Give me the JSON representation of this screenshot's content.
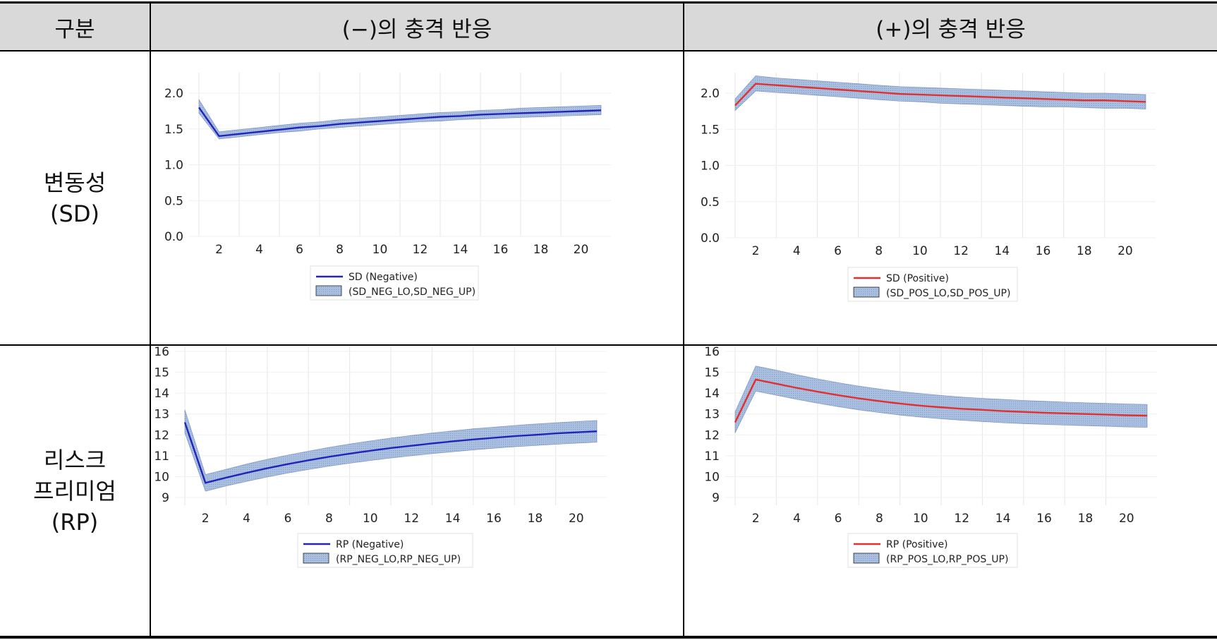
{
  "table": {
    "header": {
      "col0": "구분",
      "col1": "(−)의 충격 반응",
      "col2": "(+)의 충격 반응"
    },
    "rows": [
      {
        "label_line1": "변동성",
        "label_line2": "(SD)",
        "label_line3": ""
      },
      {
        "label_line1": "리스크",
        "label_line2": "프리미엄",
        "label_line3": "(RP)"
      }
    ]
  },
  "colors": {
    "negative_line": "#2323b8",
    "positive_line": "#e03030",
    "band_fill": "#a8bfe0",
    "band_stroke": "#5a6fa8",
    "header_bg": "#d9d9d9"
  },
  "chart_data": [
    {
      "type": "line",
      "id": "sd-neg",
      "x": [
        1,
        2,
        3,
        4,
        5,
        6,
        7,
        8,
        9,
        10,
        11,
        12,
        13,
        14,
        15,
        16,
        17,
        18,
        19,
        20,
        21
      ],
      "ylim": [
        0,
        2.4
      ],
      "yticks": [
        "0.0",
        "0.5",
        "1.0",
        "1.5",
        "2.0"
      ],
      "xticks": [
        "2",
        "4",
        "6",
        "8",
        "10",
        "12",
        "14",
        "16",
        "18",
        "20"
      ],
      "series": [
        {
          "name": "SD (Negative)",
          "values": [
            1.8,
            1.4,
            1.43,
            1.46,
            1.49,
            1.52,
            1.54,
            1.57,
            1.59,
            1.61,
            1.63,
            1.65,
            1.67,
            1.68,
            1.7,
            1.71,
            1.72,
            1.73,
            1.74,
            1.75,
            1.76
          ]
        }
      ],
      "band": {
        "name": "(SD_NEG_LO,SD_NEG_UP)",
        "lower": [
          1.72,
          1.36,
          1.39,
          1.42,
          1.45,
          1.47,
          1.5,
          1.52,
          1.54,
          1.56,
          1.58,
          1.6,
          1.61,
          1.63,
          1.64,
          1.65,
          1.66,
          1.67,
          1.68,
          1.69,
          1.7
        ],
        "upper": [
          1.91,
          1.46,
          1.49,
          1.52,
          1.55,
          1.58,
          1.6,
          1.63,
          1.65,
          1.67,
          1.69,
          1.71,
          1.73,
          1.74,
          1.76,
          1.77,
          1.79,
          1.8,
          1.81,
          1.82,
          1.83
        ]
      }
    },
    {
      "type": "line",
      "id": "sd-pos",
      "x": [
        1,
        2,
        3,
        4,
        5,
        6,
        7,
        8,
        9,
        10,
        11,
        12,
        13,
        14,
        15,
        16,
        17,
        18,
        19,
        20,
        21
      ],
      "ylim": [
        0,
        2.4
      ],
      "yticks": [
        "0.0",
        "0.5",
        "1.0",
        "1.5",
        "2.0"
      ],
      "xticks": [
        "2",
        "4",
        "6",
        "8",
        "10",
        "12",
        "14",
        "16",
        "18",
        "20"
      ],
      "series": [
        {
          "name": "SD (Positive)",
          "values": [
            1.83,
            2.13,
            2.11,
            2.09,
            2.07,
            2.05,
            2.03,
            2.01,
            1.99,
            1.98,
            1.97,
            1.96,
            1.95,
            1.94,
            1.93,
            1.92,
            1.91,
            1.9,
            1.9,
            1.89,
            1.88
          ]
        }
      ],
      "band": {
        "name": "(SD_POS_LO,SD_POS_UP)",
        "lower": [
          1.76,
          2.03,
          2.01,
          1.99,
          1.97,
          1.95,
          1.93,
          1.91,
          1.89,
          1.88,
          1.86,
          1.85,
          1.84,
          1.83,
          1.82,
          1.81,
          1.81,
          1.8,
          1.79,
          1.79,
          1.78
        ],
        "upper": [
          1.92,
          2.24,
          2.21,
          2.19,
          2.17,
          2.15,
          2.13,
          2.11,
          2.09,
          2.08,
          2.07,
          2.06,
          2.05,
          2.04,
          2.03,
          2.02,
          2.01,
          2.0,
          2.0,
          1.99,
          1.98
        ]
      }
    },
    {
      "type": "line",
      "id": "rp-neg",
      "x": [
        1,
        2,
        3,
        4,
        5,
        6,
        7,
        8,
        9,
        10,
        11,
        12,
        13,
        14,
        15,
        16,
        17,
        18,
        19,
        20,
        21
      ],
      "ylim": [
        8.4,
        16.6
      ],
      "yticks": [
        "9",
        "10",
        "11",
        "12",
        "13",
        "14",
        "15",
        "16"
      ],
      "xticks": [
        "2",
        "4",
        "6",
        "8",
        "10",
        "12",
        "14",
        "16",
        "18",
        "20"
      ],
      "series": [
        {
          "name": "RP (Negative)",
          "values": [
            12.6,
            9.7,
            9.95,
            10.18,
            10.4,
            10.6,
            10.78,
            10.95,
            11.1,
            11.24,
            11.37,
            11.48,
            11.59,
            11.69,
            11.78,
            11.86,
            11.94,
            12.0,
            12.07,
            12.12,
            12.17
          ]
        }
      ],
      "band": {
        "name": "(RP_NEG_LO,RP_NEG_UP)",
        "lower": [
          12.1,
          9.3,
          9.55,
          9.77,
          9.98,
          10.17,
          10.34,
          10.5,
          10.64,
          10.77,
          10.89,
          11.0,
          11.1,
          11.19,
          11.28,
          11.36,
          11.43,
          11.49,
          11.55,
          11.6,
          11.65
        ],
        "upper": [
          13.2,
          10.1,
          10.35,
          10.6,
          10.83,
          11.03,
          11.22,
          11.4,
          11.56,
          11.71,
          11.85,
          11.97,
          12.09,
          12.19,
          12.29,
          12.37,
          12.45,
          12.52,
          12.58,
          12.64,
          12.69
        ]
      }
    },
    {
      "type": "line",
      "id": "rp-pos",
      "x": [
        1,
        2,
        3,
        4,
        5,
        6,
        7,
        8,
        9,
        10,
        11,
        12,
        13,
        14,
        15,
        16,
        17,
        18,
        19,
        20,
        21
      ],
      "ylim": [
        8.4,
        16.6
      ],
      "yticks": [
        "9",
        "10",
        "11",
        "12",
        "13",
        "14",
        "15",
        "16"
      ],
      "xticks": [
        "2",
        "4",
        "6",
        "8",
        "10",
        "12",
        "14",
        "16",
        "18",
        "20"
      ],
      "series": [
        {
          "name": "RP (Positive)",
          "values": [
            12.6,
            14.65,
            14.45,
            14.25,
            14.07,
            13.9,
            13.75,
            13.62,
            13.5,
            13.4,
            13.32,
            13.25,
            13.2,
            13.14,
            13.1,
            13.06,
            13.03,
            13.0,
            12.97,
            12.94,
            12.92
          ]
        }
      ],
      "band": {
        "name": "(RP_POS_LO,RP_POS_UP)",
        "lower": [
          12.1,
          14.1,
          13.9,
          13.7,
          13.52,
          13.35,
          13.2,
          13.07,
          12.95,
          12.85,
          12.77,
          12.7,
          12.64,
          12.58,
          12.54,
          12.5,
          12.47,
          12.44,
          12.41,
          12.38,
          12.36
        ],
        "upper": [
          13.1,
          15.3,
          15.1,
          14.88,
          14.68,
          14.5,
          14.34,
          14.2,
          14.08,
          13.98,
          13.89,
          13.81,
          13.75,
          13.7,
          13.65,
          13.61,
          13.57,
          13.54,
          13.51,
          13.48,
          13.46
        ]
      }
    }
  ]
}
